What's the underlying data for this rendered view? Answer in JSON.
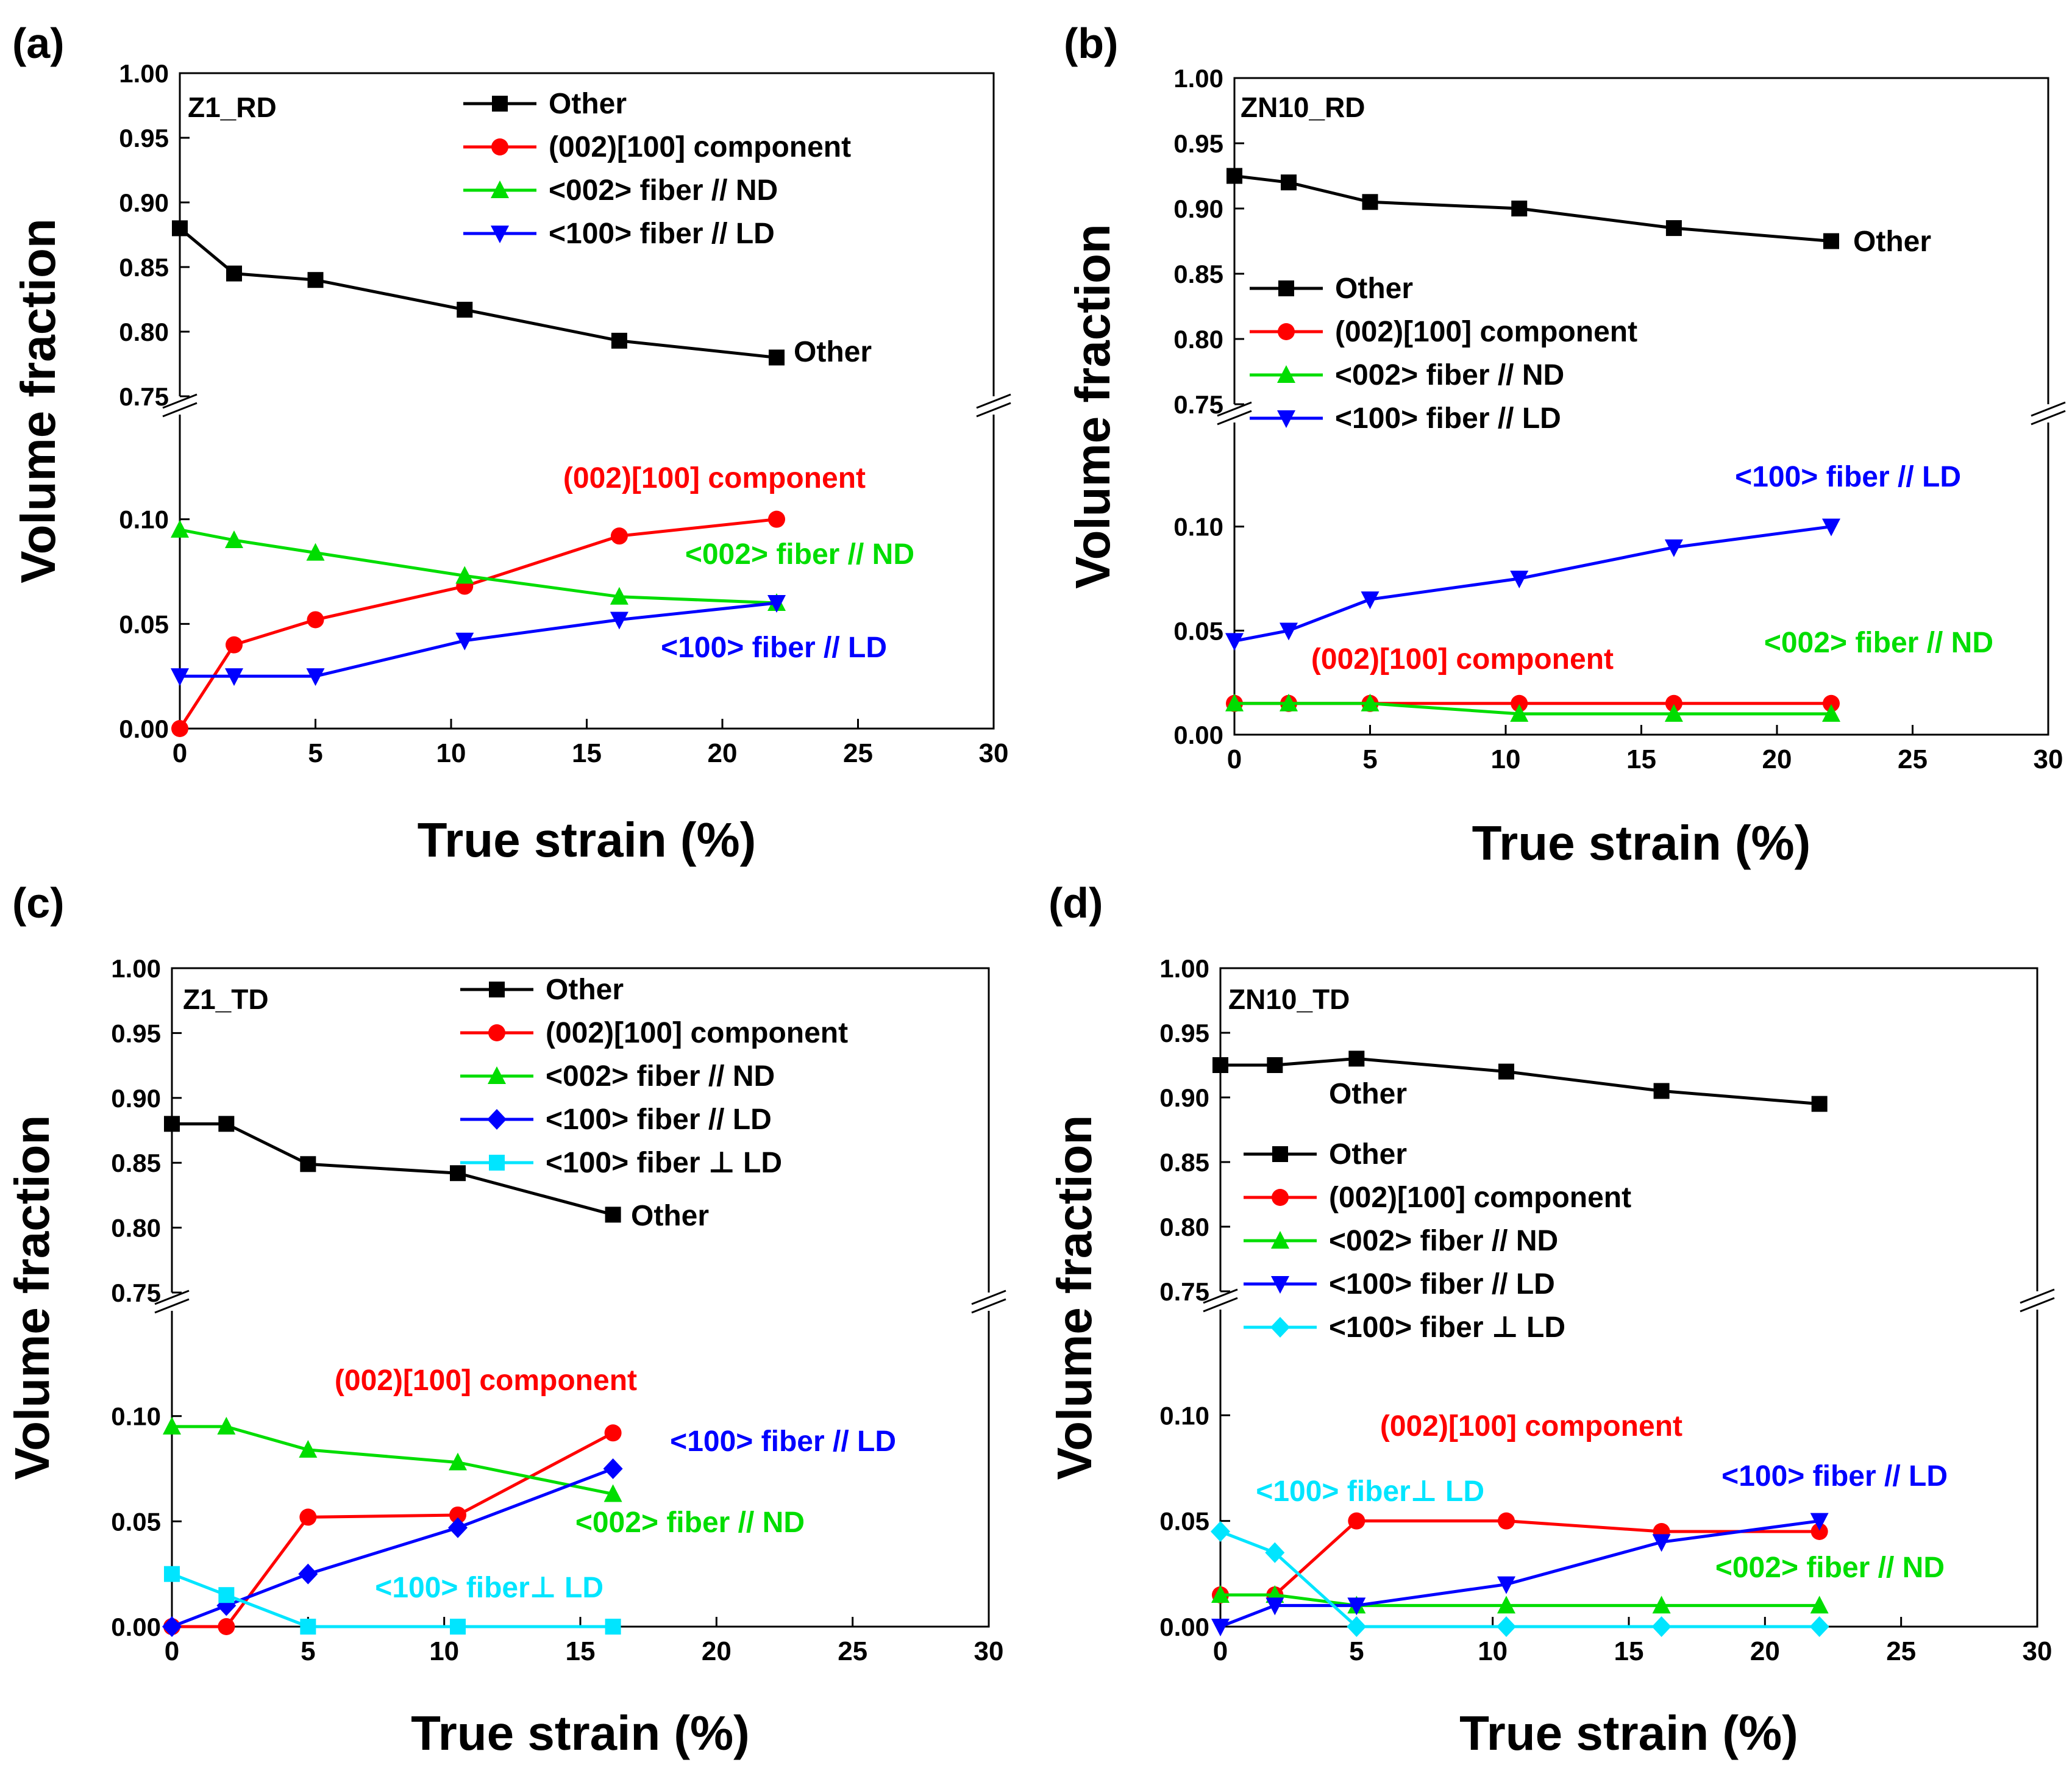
{
  "colors": {
    "Other": "#000000",
    "(002)[100] component": "#ff0000",
    "<002>  fiber // ND": "#00dd00",
    "<100> fiber // LD": "#0000ff",
    "<100> fiber ⊥ LD": "#00e5ff"
  },
  "chart_data": [
    {
      "type": "line",
      "panel_label": "(a)",
      "sample_label": "Z1_RD",
      "xlabel": "True strain (%)",
      "ylabel": "Volume fraction",
      "xlim": [
        0,
        30
      ],
      "xticks": [
        "0",
        "5",
        "10",
        "15",
        "20",
        "25",
        "30"
      ],
      "axis_break": {
        "lower_ylim": [
          0,
          0.15
        ],
        "upper_ylim": [
          0.75,
          1.0
        ]
      },
      "yticks_lower": [
        "0.00",
        "0.05",
        "0.10"
      ],
      "yticks_upper": [
        "0.75",
        "0.80",
        "0.85",
        "0.90",
        "0.95",
        "1.00"
      ],
      "legend": [
        "Other",
        "(002)[100] component",
        "<002>  fiber // ND",
        "<100> fiber // LD"
      ],
      "series": [
        {
          "name": "Other",
          "marker": "square",
          "x": [
            0,
            2,
            5,
            10.5,
            16.2,
            22
          ],
          "y": [
            0.88,
            0.845,
            0.84,
            0.817,
            0.793,
            0.78
          ]
        },
        {
          "name": "(002)[100] component",
          "marker": "circle",
          "x": [
            0,
            2,
            5,
            10.5,
            16.2,
            22
          ],
          "y": [
            0.0,
            0.04,
            0.052,
            0.068,
            0.092,
            0.1
          ]
        },
        {
          "name": "<002>  fiber // ND",
          "marker": "triangle-up",
          "x": [
            0,
            2,
            5,
            10.5,
            16.2,
            22
          ],
          "y": [
            0.095,
            0.09,
            0.084,
            0.073,
            0.063,
            0.06
          ]
        },
        {
          "name": "<100> fiber // LD",
          "marker": "triangle-down",
          "x": [
            0,
            2,
            5,
            10.5,
            16.2,
            22
          ],
          "y": [
            0.025,
            0.025,
            0.025,
            0.042,
            0.052,
            0.06
          ]
        }
      ],
      "annotations": [
        "Other",
        "(002)[100] component",
        "<002> fiber // ND",
        "<100> fiber // LD"
      ]
    },
    {
      "type": "line",
      "panel_label": "(b)",
      "sample_label": "ZN10_RD",
      "xlabel": "True strain (%)",
      "ylabel": "Volume fraction",
      "xlim": [
        0,
        30
      ],
      "xticks": [
        "0",
        "5",
        "10",
        "15",
        "20",
        "25",
        "30"
      ],
      "axis_break": {
        "lower_ylim": [
          0,
          0.15
        ],
        "upper_ylim": [
          0.75,
          1.0
        ]
      },
      "yticks_lower": [
        "0.00",
        "0.05",
        "0.10"
      ],
      "yticks_upper": [
        "0.75",
        "0.80",
        "0.85",
        "0.90",
        "0.95",
        "1.00"
      ],
      "legend": [
        "Other",
        "(002)[100] component",
        "<002>  fiber // ND",
        "<100> fiber // LD"
      ],
      "series": [
        {
          "name": "Other",
          "marker": "square",
          "x": [
            0,
            2,
            5,
            10.5,
            16.2,
            22
          ],
          "y": [
            0.925,
            0.92,
            0.905,
            0.9,
            0.885,
            0.875
          ]
        },
        {
          "name": "(002)[100] component",
          "marker": "circle",
          "x": [
            0,
            2,
            5,
            10.5,
            16.2,
            22
          ],
          "y": [
            0.015,
            0.015,
            0.015,
            0.015,
            0.015,
            0.015
          ]
        },
        {
          "name": "<002>  fiber // ND",
          "marker": "triangle-up",
          "x": [
            0,
            2,
            5,
            10.5,
            16.2,
            22
          ],
          "y": [
            0.015,
            0.015,
            0.015,
            0.01,
            0.01,
            0.01
          ]
        },
        {
          "name": "<100> fiber // LD",
          "marker": "triangle-down",
          "x": [
            0,
            2,
            5,
            10.5,
            16.2,
            22
          ],
          "y": [
            0.045,
            0.05,
            0.065,
            0.075,
            0.09,
            0.1
          ]
        }
      ],
      "annotations": [
        "Other",
        "<100> fiber // LD",
        "(002)[100] component",
        "<002> fiber // ND"
      ]
    },
    {
      "type": "line",
      "panel_label": "(c)",
      "sample_label": "Z1_TD",
      "xlabel": "True strain (%)",
      "ylabel": "Volume fraction",
      "xlim": [
        0,
        30
      ],
      "xticks": [
        "0",
        "5",
        "10",
        "15",
        "20",
        "25",
        "30"
      ],
      "axis_break": {
        "lower_ylim": [
          0,
          0.15
        ],
        "upper_ylim": [
          0.75,
          1.0
        ]
      },
      "yticks_lower": [
        "0.00",
        "0.05",
        "0.10"
      ],
      "yticks_upper": [
        "0.75",
        "0.80",
        "0.85",
        "0.90",
        "0.95",
        "1.00"
      ],
      "legend": [
        "Other",
        "(002)[100] component",
        "<002>  fiber // ND",
        "<100> fiber // LD",
        "<100> fiber ⊥ LD"
      ],
      "series": [
        {
          "name": "Other",
          "marker": "square",
          "x": [
            0,
            2,
            5,
            10.5,
            16.2
          ],
          "y": [
            0.88,
            0.88,
            0.849,
            0.842,
            0.81
          ]
        },
        {
          "name": "(002)[100] component",
          "marker": "circle",
          "x": [
            0,
            2,
            5,
            10.5,
            16.2
          ],
          "y": [
            0.0,
            0.0,
            0.052,
            0.053,
            0.092
          ]
        },
        {
          "name": "<002>  fiber // ND",
          "marker": "triangle-up",
          "x": [
            0,
            2,
            5,
            10.5,
            16.2
          ],
          "y": [
            0.095,
            0.095,
            0.084,
            0.078,
            0.063
          ]
        },
        {
          "name": "<100> fiber // LD",
          "marker": "diamond",
          "x": [
            0,
            2,
            5,
            10.5,
            16.2
          ],
          "y": [
            0.0,
            0.01,
            0.025,
            0.047,
            0.075
          ]
        },
        {
          "name": "<100> fiber ⊥ LD",
          "marker": "square",
          "x": [
            0,
            2,
            5,
            10.5,
            16.2
          ],
          "y": [
            0.025,
            0.015,
            0.0,
            0.0,
            0.0
          ]
        }
      ],
      "annotations": [
        "Other",
        "(002)[100] component",
        "<100> fiber // LD",
        "<002> fiber // ND",
        "<100> fiber⊥ LD"
      ]
    },
    {
      "type": "line",
      "panel_label": "(d)",
      "sample_label": "ZN10_TD",
      "xlabel": "True strain (%)",
      "ylabel": "Volume fraction",
      "xlim": [
        0,
        30
      ],
      "xticks": [
        "0",
        "5",
        "10",
        "15",
        "20",
        "25",
        "30"
      ],
      "axis_break": {
        "lower_ylim": [
          0,
          0.15
        ],
        "upper_ylim": [
          0.75,
          1.0
        ]
      },
      "yticks_lower": [
        "0.00",
        "0.05",
        "0.10"
      ],
      "yticks_upper": [
        "0.75",
        "0.80",
        "0.85",
        "0.90",
        "0.95",
        "1.00"
      ],
      "legend": [
        "Other",
        "(002)[100] component",
        "<002>  fiber // ND",
        "<100> fiber // LD",
        "<100> fiber ⊥ LD"
      ],
      "series": [
        {
          "name": "Other",
          "marker": "square",
          "x": [
            0,
            2,
            5,
            10.5,
            16.2,
            22
          ],
          "y": [
            0.925,
            0.925,
            0.93,
            0.92,
            0.905,
            0.895
          ]
        },
        {
          "name": "(002)[100] component",
          "marker": "circle",
          "x": [
            0,
            2,
            5,
            10.5,
            16.2,
            22
          ],
          "y": [
            0.015,
            0.015,
            0.05,
            0.05,
            0.045,
            0.045
          ]
        },
        {
          "name": "<002>  fiber // ND",
          "marker": "triangle-up",
          "x": [
            0,
            2,
            5,
            10.5,
            16.2,
            22
          ],
          "y": [
            0.015,
            0.015,
            0.01,
            0.01,
            0.01,
            0.01
          ]
        },
        {
          "name": "<100> fiber // LD",
          "marker": "triangle-down",
          "x": [
            0,
            2,
            5,
            10.5,
            16.2,
            22
          ],
          "y": [
            0.0,
            0.01,
            0.01,
            0.02,
            0.04,
            0.05
          ]
        },
        {
          "name": "<100> fiber ⊥ LD",
          "marker": "diamond",
          "x": [
            0,
            2,
            5,
            10.5,
            16.2,
            22
          ],
          "y": [
            0.045,
            0.035,
            0.0,
            0.0,
            0.0,
            0.0
          ]
        }
      ],
      "annotations": [
        "Other",
        "(002)[100] component",
        "<100> fiber // LD",
        "<100> fiber⊥ LD",
        "<002> fiber // ND"
      ]
    }
  ]
}
